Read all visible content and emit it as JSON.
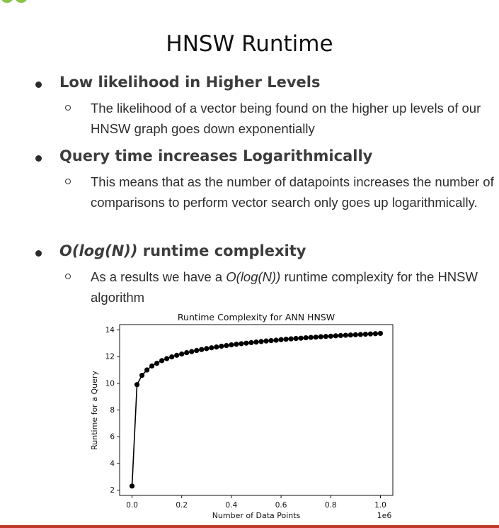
{
  "slide": {
    "title": "HNSW Runtime"
  },
  "bullets": [
    {
      "heading": "Low likelihood in Higher Levels",
      "sub": "The likelihood of a vector being found on the higher up levels of our HNSW graph goes down exponentially"
    },
    {
      "heading": "Query time increases Logarithmically",
      "sub": "This means that as the number of datapoints increases the number of comparisons to perform vector search only goes up logarithmically."
    },
    {
      "heading_italic": "O(log(N))",
      "heading_rest": " runtime complexity",
      "sub_pre": "As a results we have a ",
      "sub_italic": "O(log(N))",
      "sub_post": " runtime complexity for the HNSW algorithm"
    }
  ],
  "colors": {
    "accent_bar": "#c0392b",
    "corner_dot": "#8bc34a",
    "marker": "#000000"
  },
  "chart_data": {
    "type": "line",
    "title": "Runtime Complexity for ANN HNSW",
    "xlabel": "Number of Data Points",
    "ylabel": "Runtime for a Query",
    "x_offset_label": "1e6",
    "xlim": [
      -0.05,
      1.05
    ],
    "ylim": [
      1.6,
      14.4
    ],
    "xticks": [
      0.0,
      0.2,
      0.4,
      0.6,
      0.8,
      1.0
    ],
    "xtick_labels": [
      "0.0",
      "0.2",
      "0.4",
      "0.6",
      "0.8",
      "1.0"
    ],
    "yticks": [
      2,
      4,
      6,
      8,
      10,
      12,
      14
    ],
    "ytick_labels": [
      "2",
      "4",
      "6",
      "8",
      "10",
      "12",
      "14"
    ],
    "grid": false,
    "series": [
      {
        "marker": "circle",
        "x": [
          0.0,
          0.02,
          0.04,
          0.06,
          0.08,
          0.1,
          0.12,
          0.14,
          0.16,
          0.18,
          0.2,
          0.22,
          0.24,
          0.26,
          0.28,
          0.3,
          0.32,
          0.34,
          0.36,
          0.38,
          0.4,
          0.42,
          0.44,
          0.46,
          0.48,
          0.5,
          0.52,
          0.54,
          0.56,
          0.58,
          0.6,
          0.62,
          0.64,
          0.66,
          0.68,
          0.7,
          0.72,
          0.74,
          0.76,
          0.78,
          0.8,
          0.82,
          0.84,
          0.86,
          0.88,
          0.9,
          0.92,
          0.94,
          0.96,
          0.98,
          1.0
        ],
        "y": [
          2.3,
          9.9,
          10.6,
          11.0,
          11.3,
          11.5,
          11.7,
          11.85,
          11.98,
          12.1,
          12.2,
          12.3,
          12.38,
          12.46,
          12.53,
          12.6,
          12.66,
          12.72,
          12.78,
          12.83,
          12.88,
          12.93,
          12.97,
          13.01,
          13.05,
          13.09,
          13.13,
          13.17,
          13.2,
          13.23,
          13.27,
          13.3,
          13.33,
          13.36,
          13.38,
          13.41,
          13.44,
          13.46,
          13.49,
          13.51,
          13.53,
          13.56,
          13.58,
          13.6,
          13.62,
          13.64,
          13.66,
          13.68,
          13.7,
          13.72,
          13.74
        ]
      }
    ]
  }
}
